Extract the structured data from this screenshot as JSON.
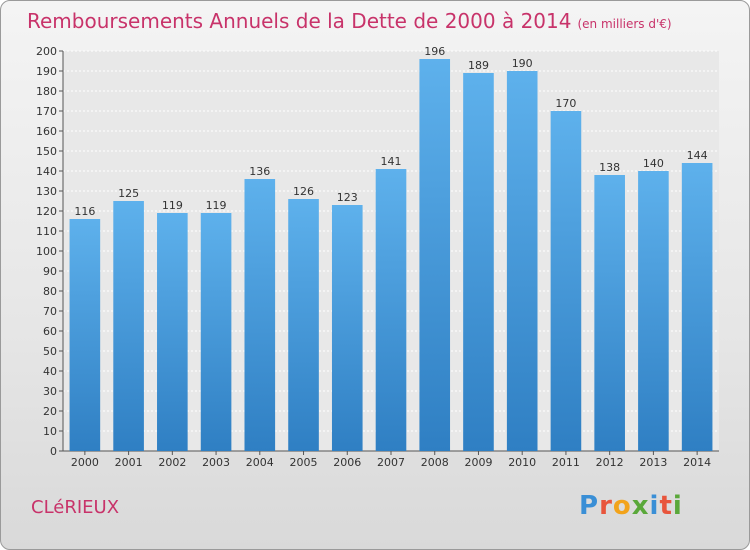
{
  "title": "Remboursements Annuels de la Dette de 2000 à 2014",
  "unit": "(en milliers d'€)",
  "town": "CLéRIEUX",
  "logo": "Proxiti",
  "colors": {
    "bar_top": "#5eb1ec",
    "bar_bottom": "#2f7fc3",
    "title": "#c8336a"
  },
  "chart_data": {
    "type": "bar",
    "categories": [
      "2000",
      "2001",
      "2002",
      "2003",
      "2004",
      "2005",
      "2006",
      "2007",
      "2008",
      "2009",
      "2010",
      "2011",
      "2012",
      "2013",
      "2014"
    ],
    "values": [
      116,
      125,
      119,
      119,
      136,
      126,
      123,
      141,
      196,
      189,
      190,
      170,
      138,
      140,
      144
    ],
    "ylim": [
      0,
      200
    ],
    "ytick_step": 10,
    "grid": true,
    "data_labels": true
  }
}
